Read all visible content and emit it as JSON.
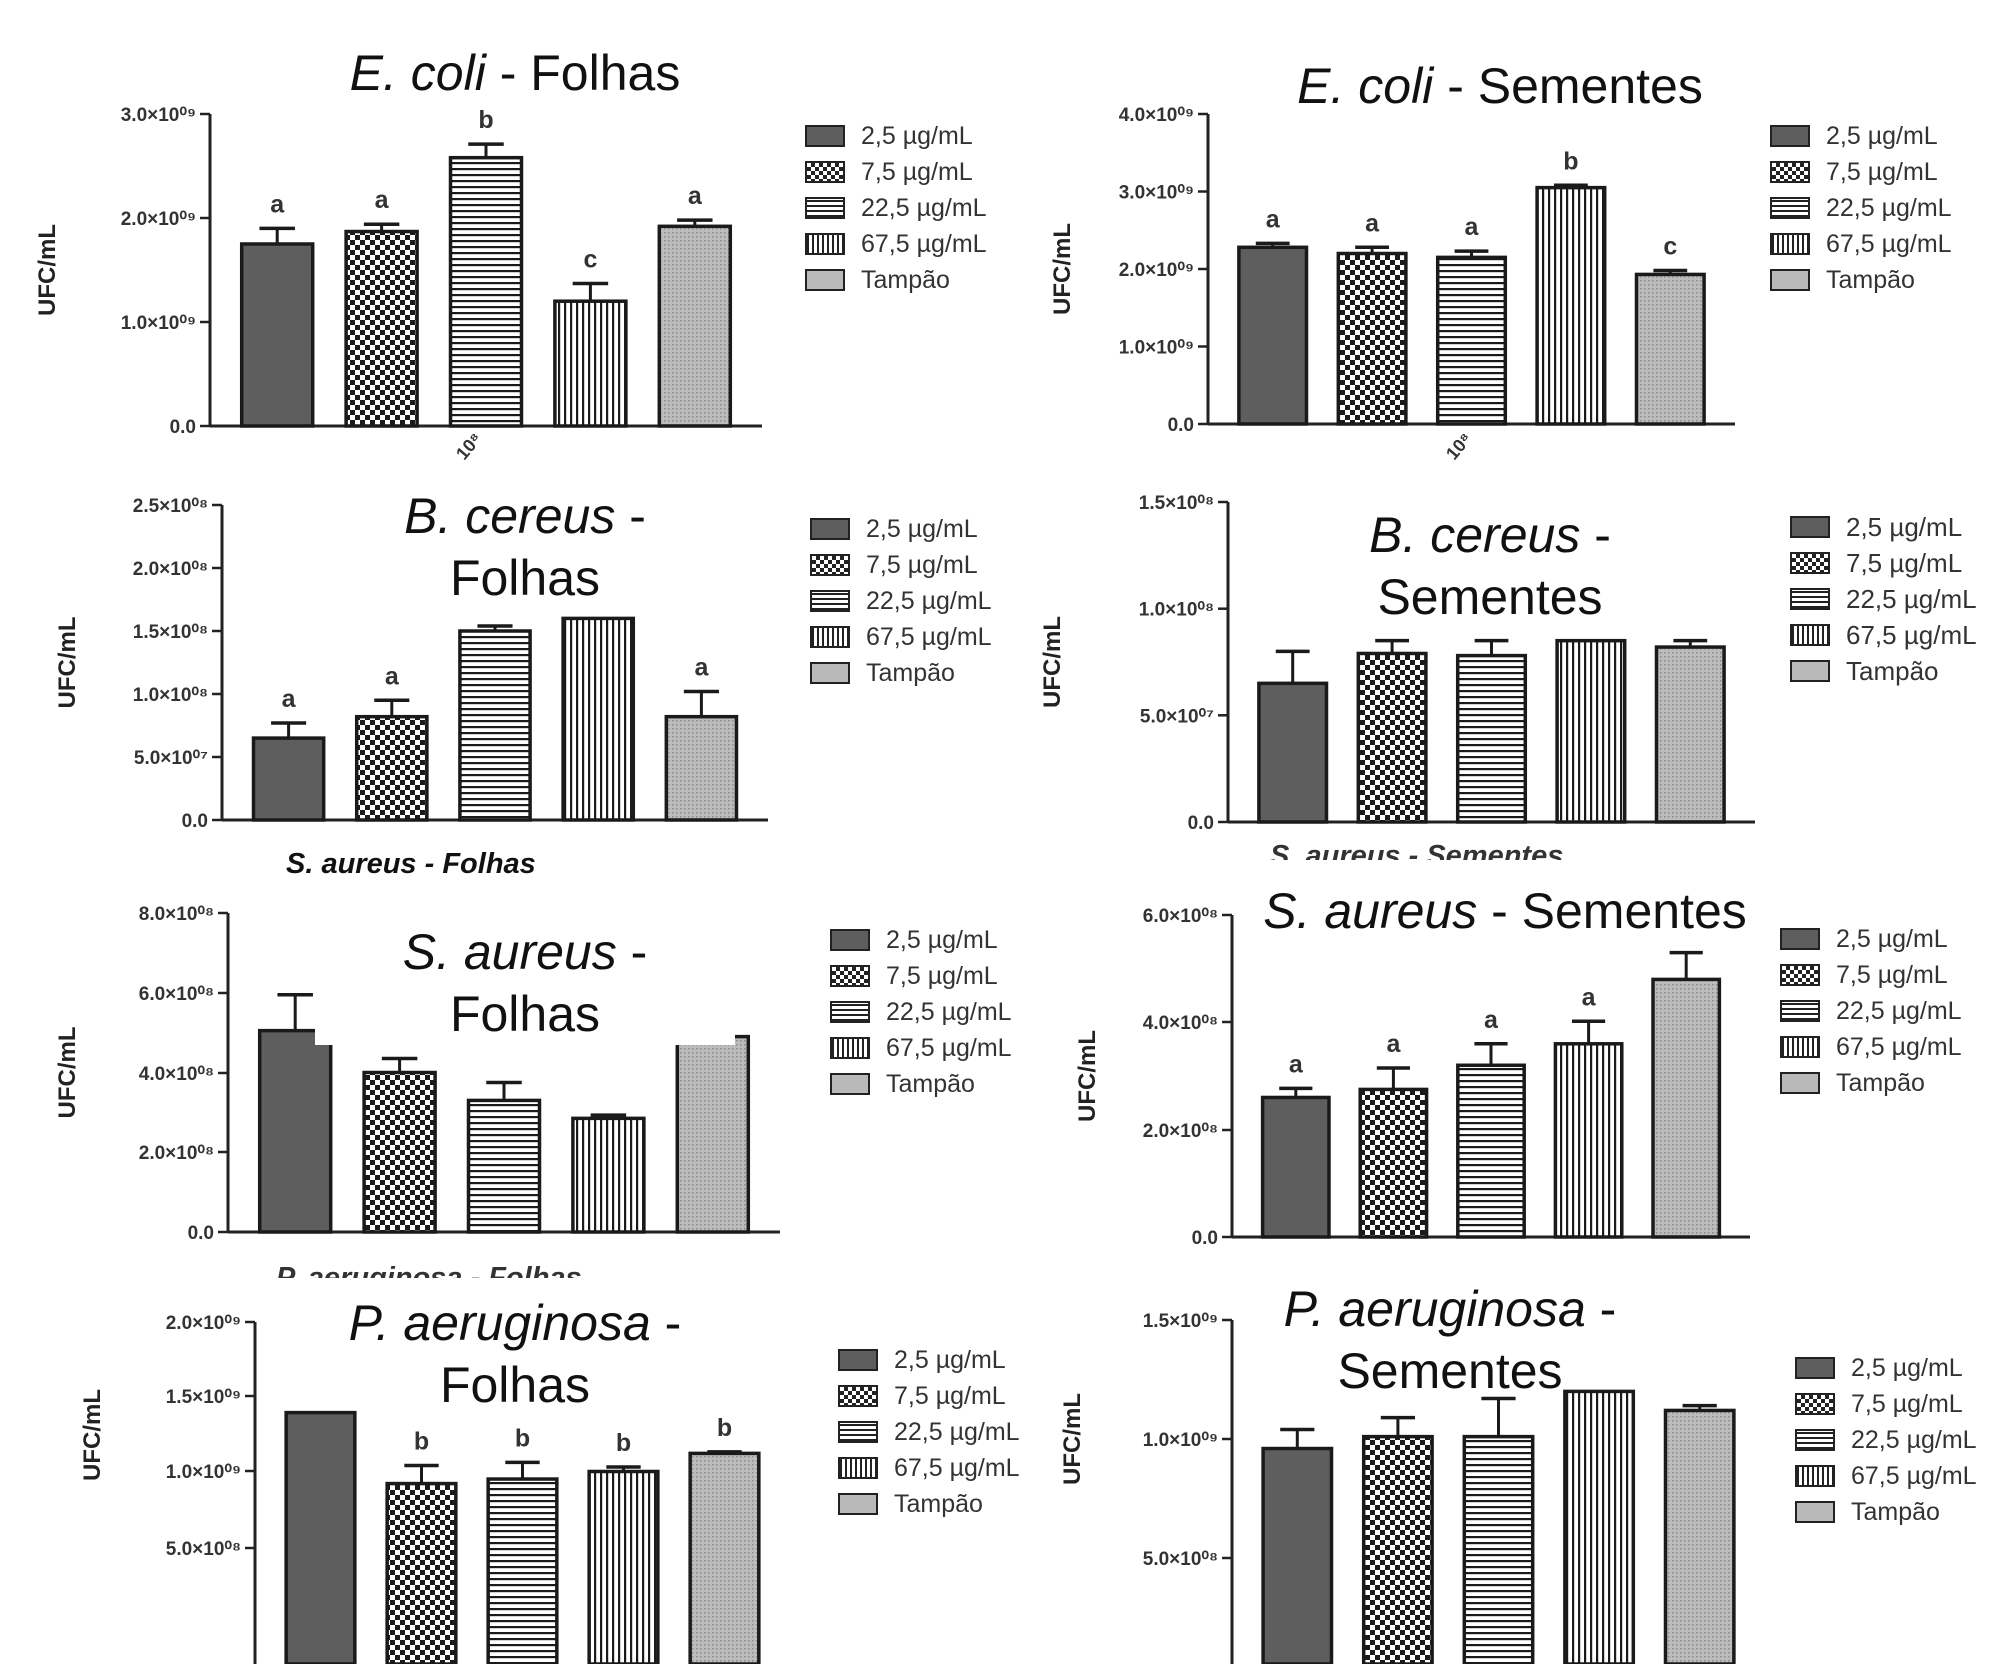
{
  "figure": {
    "legend_items": [
      "2,5 µg/mL",
      "7,5 µg/mL",
      "22,5 µg/mL",
      "67,5 µg/mL",
      "Tampão"
    ],
    "panels": [
      {
        "species": "E. coli",
        "rest": " - Folhas",
        "rest2": ""
      },
      {
        "species": "E. coli",
        "rest": " - Sementes",
        "rest2": ""
      },
      {
        "species": "B. cereus",
        "rest": " -",
        "rest2": "Folhas"
      },
      {
        "species": "B. cereus",
        "rest": " -",
        "rest2": "Sementes"
      },
      {
        "species": "S. aureus",
        "rest": " -",
        "rest2": "Folhas"
      },
      {
        "species": "S. aureus",
        "rest": " - Sementes",
        "rest2": ""
      },
      {
        "species": "P. aeruginosa",
        "rest": " -",
        "rest2": "Folhas"
      },
      {
        "species": "P. aeruginosa",
        "rest": " -",
        "rest2": "Sementes"
      }
    ],
    "stray_labels": [
      "S. aureus - Folhas",
      "S. aureus - Sementes",
      "P. aeruginosa - Folhas",
      "10⁸",
      "10⁸"
    ]
  },
  "chart_data": [
    {
      "type": "bar",
      "title": "E. coli - Folhas",
      "ylabel": "UFC/mL",
      "categories": [
        "2,5 µg/mL",
        "7,5 µg/mL",
        "22,5 µg/mL",
        "67,5 µg/mL",
        "Tampão"
      ],
      "values": [
        1750000000.0,
        1870000000.0,
        2580000000.0,
        1200000000.0,
        1920000000.0
      ],
      "errors": [
        150000000.0,
        70000000.0,
        130000000.0,
        170000000.0,
        60000000.0
      ],
      "letters": [
        "a",
        "a",
        "b",
        "c",
        "a"
      ],
      "yticks": [
        "0.0",
        "1.0×10⁰⁹",
        "2.0×10⁰⁹",
        "3.0×10⁰⁹"
      ],
      "ylim": [
        0,
        3000000000.0
      ]
    },
    {
      "type": "bar",
      "title": "E. coli - Sementes",
      "ylabel": "UFC/mL",
      "categories": [
        "2,5 µg/mL",
        "7,5 µg/mL",
        "22,5 µg/mL",
        "67,5 µg/mL",
        "Tampão"
      ],
      "values": [
        2280000000.0,
        2200000000.0,
        2150000000.0,
        3050000000.0,
        1930000000.0
      ],
      "errors": [
        50000000.0,
        80000000.0,
        80000000.0,
        30000000.0,
        50000000.0
      ],
      "letters": [
        "a",
        "a",
        "a",
        "b",
        "c"
      ],
      "yticks": [
        "0.0",
        "1.0×10⁰⁹",
        "2.0×10⁰⁹",
        "3.0×10⁰⁹",
        "4.0×10⁰⁹"
      ],
      "ylim": [
        0,
        4000000000.0
      ]
    },
    {
      "type": "bar",
      "title": "B. cereus - Folhas",
      "ylabel": "UFC/mL",
      "categories": [
        "2,5 µg/mL",
        "7,5 µg/mL",
        "22,5 µg/mL",
        "67,5 µg/mL",
        "Tampão"
      ],
      "values": [
        65000000.0,
        82000000.0,
        150000000.0,
        160000000.0,
        82000000.0
      ],
      "errors": [
        12000000.0,
        13000000.0,
        4000000.0,
        0,
        20000000.0
      ],
      "letters": [
        "a",
        "a",
        "",
        "",
        "a"
      ],
      "yticks": [
        "0.0",
        "5.0×10⁰⁷",
        "1.0×10⁰⁸",
        "1.5×10⁰⁸",
        "2.0×10⁰⁸",
        "2.5×10⁰⁸"
      ],
      "ylim": [
        0,
        250000000.0
      ]
    },
    {
      "type": "bar",
      "title": "B. cereus - Sementes",
      "ylabel": "UFC/mL",
      "categories": [
        "2,5 µg/mL",
        "7,5 µg/mL",
        "22,5 µg/mL",
        "67,5 µg/mL",
        "Tampão"
      ],
      "values": [
        65000000.0,
        79000000.0,
        78000000.0,
        85000000.0,
        82000000.0
      ],
      "errors": [
        15000000.0,
        6000000.0,
        7000000.0,
        0,
        3000000.0
      ],
      "letters": [
        "",
        "",
        "",
        "",
        ""
      ],
      "yticks": [
        "0.0",
        "5.0×10⁰⁷",
        "1.0×10⁰⁸",
        "1.5×10⁰⁸"
      ],
      "ylim": [
        0,
        150000000.0
      ]
    },
    {
      "type": "bar",
      "title": "S. aureus - Folhas",
      "ylabel": "UFC/mL",
      "categories": [
        "2,5 µg/mL",
        "7,5 µg/mL",
        "22,5 µg/mL",
        "67,5 µg/mL",
        "Tampão"
      ],
      "values": [
        505000000.0,
        400000000.0,
        330000000.0,
        285000000.0,
        490000000.0
      ],
      "errors": [
        90000000.0,
        35000000.0,
        45000000.0,
        8000000.0,
        40000000.0
      ],
      "letters": [
        "",
        "",
        "",
        "",
        ""
      ],
      "yticks": [
        "0.0",
        "2.0×10⁰⁸",
        "4.0×10⁰⁸",
        "6.0×10⁰⁸",
        "8.0×10⁰⁸"
      ],
      "ylim": [
        0,
        800000000.0
      ]
    },
    {
      "type": "bar",
      "title": "S. aureus - Sementes",
      "ylabel": "UFC/mL",
      "categories": [
        "2,5 µg/mL",
        "7,5 µg/mL",
        "22,5 µg/mL",
        "67,5 µg/mL",
        "Tampão"
      ],
      "values": [
        260000000.0,
        275000000.0,
        320000000.0,
        360000000.0,
        480000000.0
      ],
      "errors": [
        17000000.0,
        40000000.0,
        40000000.0,
        42000000.0,
        50000000.0
      ],
      "letters": [
        "a",
        "a",
        "a",
        "a",
        ""
      ],
      "yticks": [
        "0.0",
        "2.0×10⁰⁸",
        "4.0×10⁰⁸",
        "6.0×10⁰⁸"
      ],
      "ylim": [
        0,
        600000000.0
      ]
    },
    {
      "type": "bar",
      "title": "P. aeruginosa - Folhas",
      "ylabel": "UFC/mL",
      "categories": [
        "2,5 µg/mL",
        "7,5 µg/mL",
        "22,5 µg/mL",
        "67,5 µg/mL",
        "Tampão"
      ],
      "values": [
        1400000000.0,
        930000000.0,
        960000000.0,
        1010000000.0,
        1130000000.0
      ],
      "errors": [
        0,
        120000000.0,
        110000000.0,
        30000000.0,
        10000000.0
      ],
      "letters": [
        "",
        "b",
        "b",
        "b",
        "b"
      ],
      "yticks": [
        "5.0×10⁰⁸",
        "1.0×10⁰⁹",
        "1.5×10⁰⁹",
        "2.0×10⁰⁹"
      ],
      "ylim": [
        0,
        2000000000.0
      ]
    },
    {
      "type": "bar",
      "title": "P. aeruginosa - Sementes",
      "ylabel": "UFC/mL",
      "categories": [
        "2,5 µg/mL",
        "7,5 µg/mL",
        "22,5 µg/mL",
        "67,5 µg/mL",
        "Tampão"
      ],
      "values": [
        960000000.0,
        1010000000.0,
        1010000000.0,
        1200000000.0,
        1120000000.0
      ],
      "errors": [
        80000000.0,
        80000000.0,
        160000000.0,
        0,
        20000000.0
      ],
      "letters": [
        "",
        "",
        "",
        "",
        ""
      ],
      "yticks": [
        "5.0×10⁰⁸",
        "1.0×10⁰⁹",
        "1.5×10⁰⁹"
      ],
      "ylim": [
        0,
        1500000000.0
      ]
    }
  ]
}
